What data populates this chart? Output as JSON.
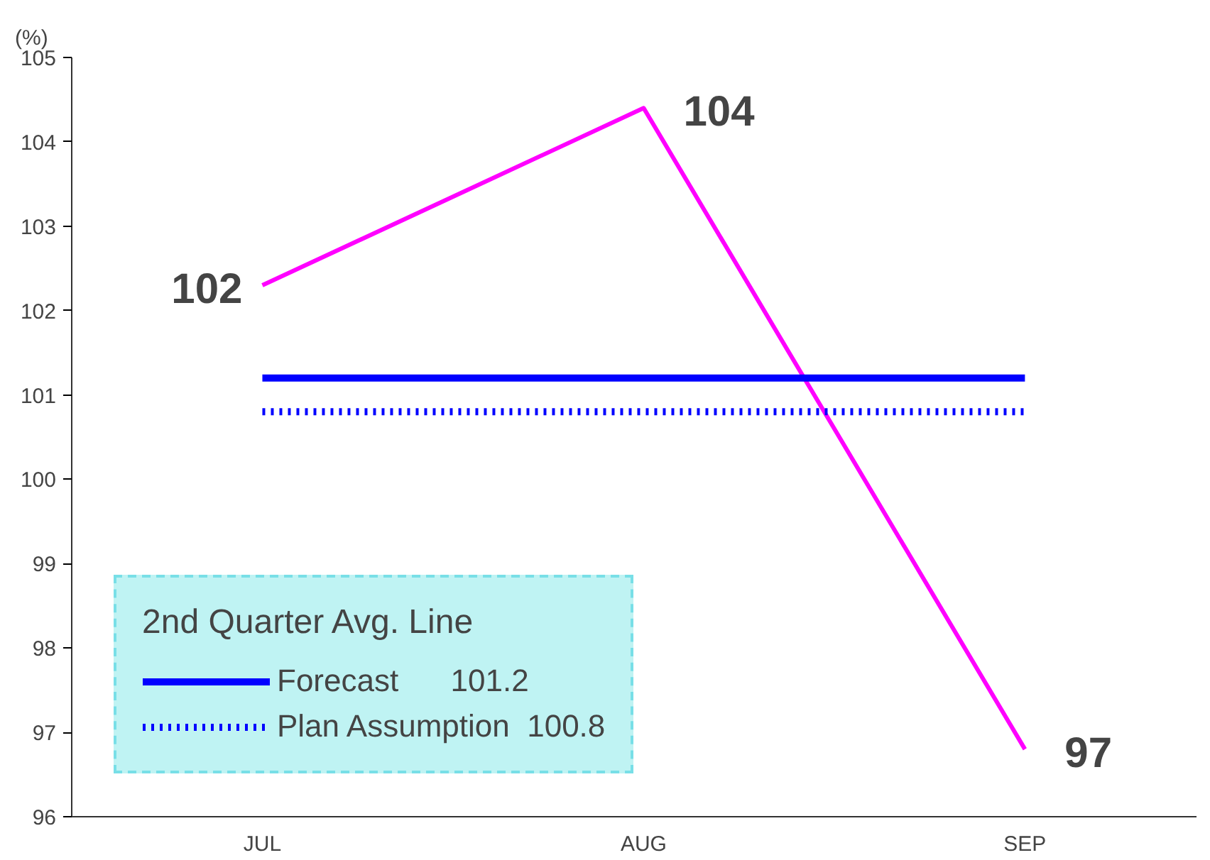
{
  "chart_data": {
    "type": "line",
    "ylabel": "(%)",
    "categories": [
      "JUL",
      "AUG",
      "SEP"
    ],
    "series": [
      {
        "color": "#ff00ff",
        "values": [
          102.3,
          104.4,
          96.8
        ],
        "value_labels": [
          "102",
          "104",
          "97"
        ]
      },
      {
        "name": "Forecast      101.2",
        "color": "#0000ff",
        "values": [
          101.2,
          101.2,
          101.2
        ],
        "line_style": "solid"
      },
      {
        "name": "Plan Assumption  100.8",
        "color": "#0000ff",
        "values": [
          100.8,
          100.8,
          100.8
        ],
        "line_style": "dotted"
      }
    ],
    "legend_title": "2nd Quarter Avg. Line",
    "legend": "bottom left",
    "ylim": [
      96,
      105
    ],
    "yticks": [
      96,
      97,
      98,
      99,
      100,
      101,
      102,
      103,
      104,
      105
    ],
    "grid": false,
    "marker": "none"
  }
}
